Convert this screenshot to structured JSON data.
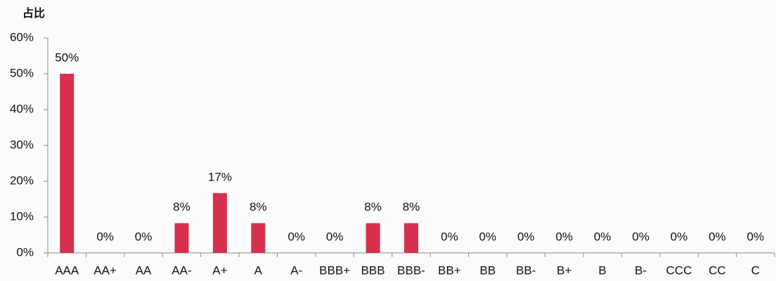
{
  "chart_data": {
    "type": "bar",
    "y_label": "占比",
    "categories": [
      "AAA",
      "AA+",
      "AA",
      "AA-",
      "A+",
      "A",
      "A-",
      "BBB+",
      "BBB",
      "BBB-",
      "BB+",
      "BB",
      "BB-",
      "B+",
      "B",
      "B-",
      "CCC",
      "CC",
      "C"
    ],
    "values": [
      50,
      0,
      0,
      8.3,
      16.7,
      8.3,
      0,
      0,
      8.3,
      8.3,
      0,
      0,
      0,
      0,
      0,
      0,
      0,
      0,
      0
    ],
    "value_labels": [
      "50%",
      "0%",
      "0%",
      "8%",
      "17%",
      "8%",
      "0%",
      "0%",
      "8%",
      "8%",
      "0%",
      "0%",
      "0%",
      "0%",
      "0%",
      "0%",
      "0%",
      "0%",
      "0%"
    ],
    "color": "#d7304e",
    "ylim": [
      0,
      60
    ],
    "yticks": [
      {
        "value": 0,
        "label": "0%"
      },
      {
        "value": 10,
        "label": "10%"
      },
      {
        "value": 20,
        "label": "20%"
      },
      {
        "value": 30,
        "label": "30%"
      },
      {
        "value": 40,
        "label": "40%"
      },
      {
        "value": 50,
        "label": "50%"
      },
      {
        "value": 60,
        "label": "60%"
      }
    ],
    "grid": false
  }
}
